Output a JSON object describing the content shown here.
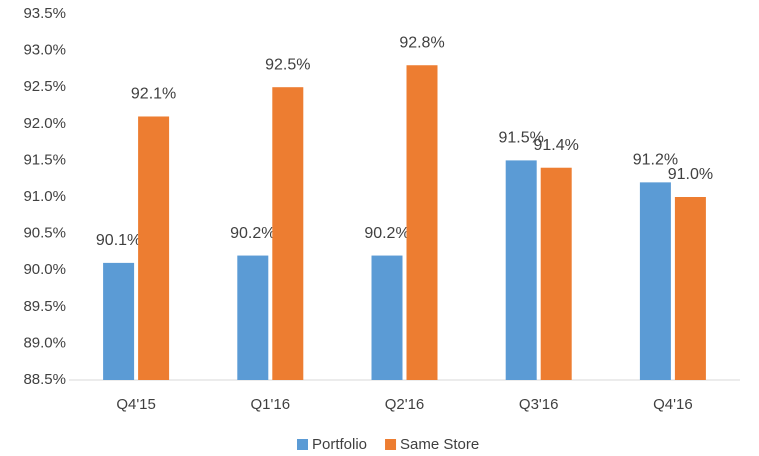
{
  "chart_data": {
    "type": "bar",
    "categories": [
      "Q4'15",
      "Q1'16",
      "Q2'16",
      "Q3'16",
      "Q4'16"
    ],
    "series": [
      {
        "name": "Portfolio",
        "color": "#5b9bd5",
        "values": [
          90.1,
          90.2,
          90.2,
          91.5,
          91.2
        ],
        "value_labels": [
          "90.1%",
          "90.2%",
          "90.2%",
          "91.5%",
          "91.2%"
        ]
      },
      {
        "name": "Same Store",
        "color": "#ed7d31",
        "values": [
          92.1,
          92.5,
          92.8,
          91.4,
          91.0
        ],
        "value_labels": [
          "92.1%",
          "92.5%",
          "92.8%",
          "91.4%",
          "91.0%"
        ]
      }
    ],
    "ylim": [
      88.5,
      93.5
    ],
    "yticks": [
      {
        "value": 88.5,
        "label": "88.5%"
      },
      {
        "value": 89.0,
        "label": "89.0%"
      },
      {
        "value": 89.5,
        "label": "89.5%"
      },
      {
        "value": 90.0,
        "label": "90.0%"
      },
      {
        "value": 90.5,
        "label": "90.5%"
      },
      {
        "value": 91.0,
        "label": "91.0%"
      },
      {
        "value": 91.5,
        "label": "91.5%"
      },
      {
        "value": 92.0,
        "label": "92.0%"
      },
      {
        "value": 92.5,
        "label": "92.5%"
      },
      {
        "value": 93.0,
        "label": "93.0%"
      },
      {
        "value": 93.5,
        "label": "93.5%"
      }
    ],
    "grid": false,
    "legend": "bottom"
  }
}
